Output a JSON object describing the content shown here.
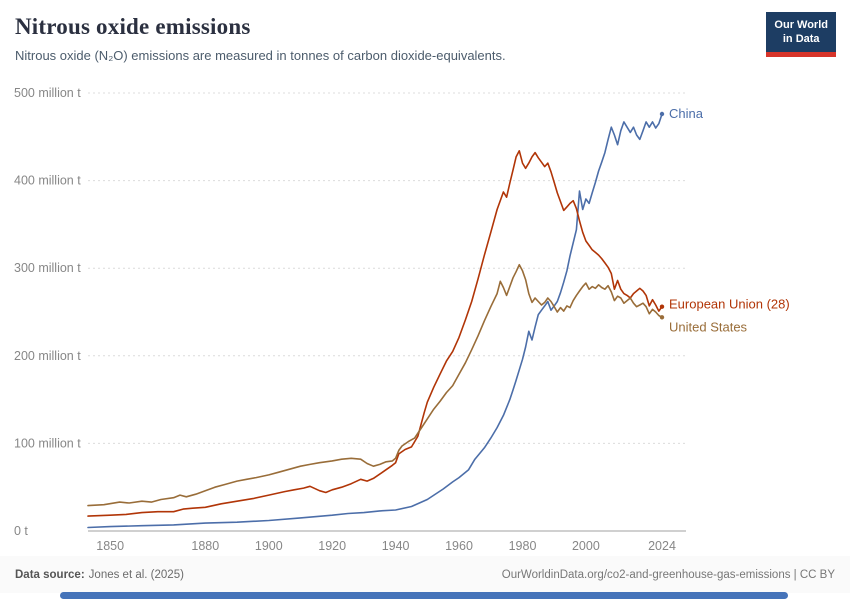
{
  "header": {
    "title": "Nitrous oxide emissions",
    "subtitle": "Nitrous oxide (N₂O) emissions are measured in tonnes of carbon dioxide-equivalents.",
    "logo": {
      "line1": "Our World",
      "line2": "in Data",
      "bg": "#1d3d63",
      "accent": "#d7342a"
    }
  },
  "colors": {
    "timeline": "#4573B9"
  },
  "chart_data": {
    "type": "line",
    "title": "Nitrous oxide emissions",
    "subtitle": "Nitrous oxide (N₂O) emissions are measured in tonnes of carbon dioxide-equivalents.",
    "xlabel": "",
    "ylabel": "",
    "unit": "million tonnes of CO₂-equivalents",
    "grid": "horizontal-dotted",
    "legend_position": "end-of-line",
    "x_domain": [
      1843,
      2024
    ],
    "y_domain": [
      0,
      500
    ],
    "y_ticks": [
      {
        "value": 0,
        "label": "0 t"
      },
      {
        "value": 100,
        "label": "100 million t"
      },
      {
        "value": 200,
        "label": "200 million t"
      },
      {
        "value": 300,
        "label": "300 million t"
      },
      {
        "value": 400,
        "label": "400 million t"
      },
      {
        "value": 500,
        "label": "500 million t"
      }
    ],
    "x_ticks": [
      {
        "value": 1850,
        "label": "1850"
      },
      {
        "value": 1880,
        "label": "1880"
      },
      {
        "value": 1900,
        "label": "1900"
      },
      {
        "value": 1920,
        "label": "1920"
      },
      {
        "value": 1940,
        "label": "1940"
      },
      {
        "value": 1960,
        "label": "1960"
      },
      {
        "value": 1980,
        "label": "1980"
      },
      {
        "value": 2000,
        "label": "2000"
      },
      {
        "value": 2024,
        "label": "2024"
      }
    ],
    "series": [
      {
        "name": "China",
        "color": "#4C6EA9",
        "label_dy": 0,
        "points": [
          [
            1843,
            4
          ],
          [
            1850,
            5
          ],
          [
            1860,
            6
          ],
          [
            1870,
            7
          ],
          [
            1880,
            9
          ],
          [
            1890,
            10
          ],
          [
            1900,
            12
          ],
          [
            1910,
            15
          ],
          [
            1920,
            18
          ],
          [
            1925,
            20
          ],
          [
            1930,
            21
          ],
          [
            1935,
            23
          ],
          [
            1940,
            24
          ],
          [
            1945,
            28
          ],
          [
            1950,
            36
          ],
          [
            1955,
            48
          ],
          [
            1958,
            56
          ],
          [
            1960,
            61
          ],
          [
            1963,
            70
          ],
          [
            1965,
            82
          ],
          [
            1968,
            95
          ],
          [
            1970,
            106
          ],
          [
            1972,
            118
          ],
          [
            1974,
            132
          ],
          [
            1976,
            150
          ],
          [
            1977,
            161
          ],
          [
            1978,
            172
          ],
          [
            1979,
            184
          ],
          [
            1980,
            196
          ],
          [
            1981,
            210
          ],
          [
            1982,
            228
          ],
          [
            1983,
            218
          ],
          [
            1984,
            233
          ],
          [
            1985,
            247
          ],
          [
            1986,
            252
          ],
          [
            1987,
            257
          ],
          [
            1988,
            262
          ],
          [
            1989,
            252
          ],
          [
            1990,
            257
          ],
          [
            1991,
            262
          ],
          [
            1992,
            272
          ],
          [
            1993,
            284
          ],
          [
            1994,
            297
          ],
          [
            1995,
            314
          ],
          [
            1996,
            329
          ],
          [
            1997,
            344
          ],
          [
            1998,
            388
          ],
          [
            1999,
            367
          ],
          [
            2000,
            379
          ],
          [
            2001,
            374
          ],
          [
            2002,
            386
          ],
          [
            2003,
            398
          ],
          [
            2004,
            411
          ],
          [
            2005,
            421
          ],
          [
            2006,
            432
          ],
          [
            2007,
            447
          ],
          [
            2008,
            461
          ],
          [
            2009,
            452
          ],
          [
            2010,
            441
          ],
          [
            2011,
            457
          ],
          [
            2012,
            467
          ],
          [
            2013,
            461
          ],
          [
            2014,
            455
          ],
          [
            2015,
            461
          ],
          [
            2016,
            452
          ],
          [
            2017,
            447
          ],
          [
            2018,
            457
          ],
          [
            2019,
            467
          ],
          [
            2020,
            461
          ],
          [
            2021,
            467
          ],
          [
            2022,
            460
          ],
          [
            2023,
            465
          ],
          [
            2024,
            476
          ]
        ]
      },
      {
        "name": "European Union (28)",
        "color": "#B13507",
        "label_dy": -2,
        "points": [
          [
            1843,
            17
          ],
          [
            1850,
            18
          ],
          [
            1855,
            19
          ],
          [
            1860,
            21
          ],
          [
            1865,
            22
          ],
          [
            1870,
            22
          ],
          [
            1873,
            25
          ],
          [
            1876,
            26
          ],
          [
            1880,
            27
          ],
          [
            1885,
            31
          ],
          [
            1890,
            34
          ],
          [
            1895,
            37
          ],
          [
            1900,
            41
          ],
          [
            1905,
            45
          ],
          [
            1908,
            47
          ],
          [
            1911,
            49
          ],
          [
            1913,
            51
          ],
          [
            1916,
            46
          ],
          [
            1918,
            44
          ],
          [
            1920,
            47
          ],
          [
            1923,
            50
          ],
          [
            1926,
            54
          ],
          [
            1929,
            59
          ],
          [
            1931,
            57
          ],
          [
            1933,
            60
          ],
          [
            1935,
            65
          ],
          [
            1937,
            70
          ],
          [
            1939,
            75
          ],
          [
            1940,
            78
          ],
          [
            1941,
            88
          ],
          [
            1943,
            93
          ],
          [
            1945,
            96
          ],
          [
            1947,
            108
          ],
          [
            1949,
            135
          ],
          [
            1950,
            147
          ],
          [
            1952,
            164
          ],
          [
            1954,
            179
          ],
          [
            1956,
            194
          ],
          [
            1958,
            205
          ],
          [
            1960,
            221
          ],
          [
            1962,
            241
          ],
          [
            1964,
            262
          ],
          [
            1966,
            288
          ],
          [
            1968,
            315
          ],
          [
            1970,
            341
          ],
          [
            1972,
            367
          ],
          [
            1974,
            387
          ],
          [
            1975,
            381
          ],
          [
            1976,
            397
          ],
          [
            1977,
            412
          ],
          [
            1978,
            427
          ],
          [
            1979,
            434
          ],
          [
            1980,
            420
          ],
          [
            1981,
            414
          ],
          [
            1982,
            420
          ],
          [
            1983,
            427
          ],
          [
            1984,
            432
          ],
          [
            1985,
            426
          ],
          [
            1986,
            421
          ],
          [
            1987,
            416
          ],
          [
            1988,
            420
          ],
          [
            1989,
            410
          ],
          [
            1990,
            398
          ],
          [
            1991,
            386
          ],
          [
            1992,
            376
          ],
          [
            1993,
            366
          ],
          [
            1994,
            370
          ],
          [
            1995,
            374
          ],
          [
            1996,
            377
          ],
          [
            1997,
            368
          ],
          [
            1998,
            354
          ],
          [
            1999,
            341
          ],
          [
            2000,
            331
          ],
          [
            2001,
            326
          ],
          [
            2002,
            321
          ],
          [
            2003,
            318
          ],
          [
            2004,
            315
          ],
          [
            2005,
            311
          ],
          [
            2006,
            306
          ],
          [
            2007,
            301
          ],
          [
            2008,
            294
          ],
          [
            2009,
            276
          ],
          [
            2010,
            286
          ],
          [
            2011,
            276
          ],
          [
            2012,
            271
          ],
          [
            2013,
            269
          ],
          [
            2014,
            266
          ],
          [
            2015,
            271
          ],
          [
            2016,
            274
          ],
          [
            2017,
            277
          ],
          [
            2018,
            274
          ],
          [
            2019,
            269
          ],
          [
            2020,
            257
          ],
          [
            2021,
            264
          ],
          [
            2022,
            258
          ],
          [
            2023,
            251
          ],
          [
            2024,
            256
          ]
        ]
      },
      {
        "name": "United States",
        "color": "#996D39",
        "label_dy": 10,
        "points": [
          [
            1843,
            29
          ],
          [
            1848,
            30
          ],
          [
            1853,
            33
          ],
          [
            1856,
            32
          ],
          [
            1860,
            34
          ],
          [
            1863,
            33
          ],
          [
            1866,
            36
          ],
          [
            1870,
            38
          ],
          [
            1872,
            41
          ],
          [
            1874,
            39
          ],
          [
            1877,
            42
          ],
          [
            1880,
            46
          ],
          [
            1883,
            50
          ],
          [
            1886,
            53
          ],
          [
            1890,
            57
          ],
          [
            1893,
            59
          ],
          [
            1896,
            61
          ],
          [
            1900,
            64
          ],
          [
            1903,
            67
          ],
          [
            1906,
            70
          ],
          [
            1910,
            74
          ],
          [
            1913,
            76
          ],
          [
            1916,
            78
          ],
          [
            1920,
            80
          ],
          [
            1923,
            82
          ],
          [
            1926,
            83
          ],
          [
            1929,
            82
          ],
          [
            1931,
            77
          ],
          [
            1933,
            74
          ],
          [
            1935,
            76
          ],
          [
            1937,
            79
          ],
          [
            1939,
            80
          ],
          [
            1940,
            83
          ],
          [
            1941,
            92
          ],
          [
            1942,
            97
          ],
          [
            1944,
            102
          ],
          [
            1946,
            106
          ],
          [
            1948,
            117
          ],
          [
            1950,
            128
          ],
          [
            1952,
            139
          ],
          [
            1954,
            148
          ],
          [
            1956,
            158
          ],
          [
            1958,
            166
          ],
          [
            1960,
            179
          ],
          [
            1962,
            192
          ],
          [
            1964,
            207
          ],
          [
            1966,
            223
          ],
          [
            1968,
            240
          ],
          [
            1970,
            256
          ],
          [
            1972,
            271
          ],
          [
            1973,
            285
          ],
          [
            1974,
            278
          ],
          [
            1975,
            269
          ],
          [
            1976,
            279
          ],
          [
            1977,
            289
          ],
          [
            1978,
            296
          ],
          [
            1979,
            304
          ],
          [
            1980,
            297
          ],
          [
            1981,
            287
          ],
          [
            1982,
            271
          ],
          [
            1983,
            261
          ],
          [
            1984,
            266
          ],
          [
            1985,
            262
          ],
          [
            1986,
            258
          ],
          [
            1987,
            261
          ],
          [
            1988,
            266
          ],
          [
            1989,
            262
          ],
          [
            1990,
            256
          ],
          [
            1991,
            250
          ],
          [
            1992,
            255
          ],
          [
            1993,
            251
          ],
          [
            1994,
            257
          ],
          [
            1995,
            255
          ],
          [
            1996,
            263
          ],
          [
            1997,
            269
          ],
          [
            1998,
            274
          ],
          [
            1999,
            279
          ],
          [
            2000,
            283
          ],
          [
            2001,
            276
          ],
          [
            2002,
            279
          ],
          [
            2003,
            277
          ],
          [
            2004,
            281
          ],
          [
            2005,
            278
          ],
          [
            2006,
            276
          ],
          [
            2007,
            280
          ],
          [
            2008,
            273
          ],
          [
            2009,
            263
          ],
          [
            2010,
            268
          ],
          [
            2011,
            266
          ],
          [
            2012,
            260
          ],
          [
            2013,
            263
          ],
          [
            2014,
            266
          ],
          [
            2015,
            260
          ],
          [
            2016,
            256
          ],
          [
            2017,
            258
          ],
          [
            2018,
            260
          ],
          [
            2019,
            256
          ],
          [
            2020,
            248
          ],
          [
            2021,
            253
          ],
          [
            2022,
            250
          ],
          [
            2023,
            246
          ],
          [
            2024,
            244
          ]
        ]
      }
    ]
  },
  "footer": {
    "source_label": "Data source:",
    "source": "Jones et al. (2025)",
    "right_text": "OurWorldinData.org/co2-and-greenhouse-gas-emissions | CC BY"
  }
}
